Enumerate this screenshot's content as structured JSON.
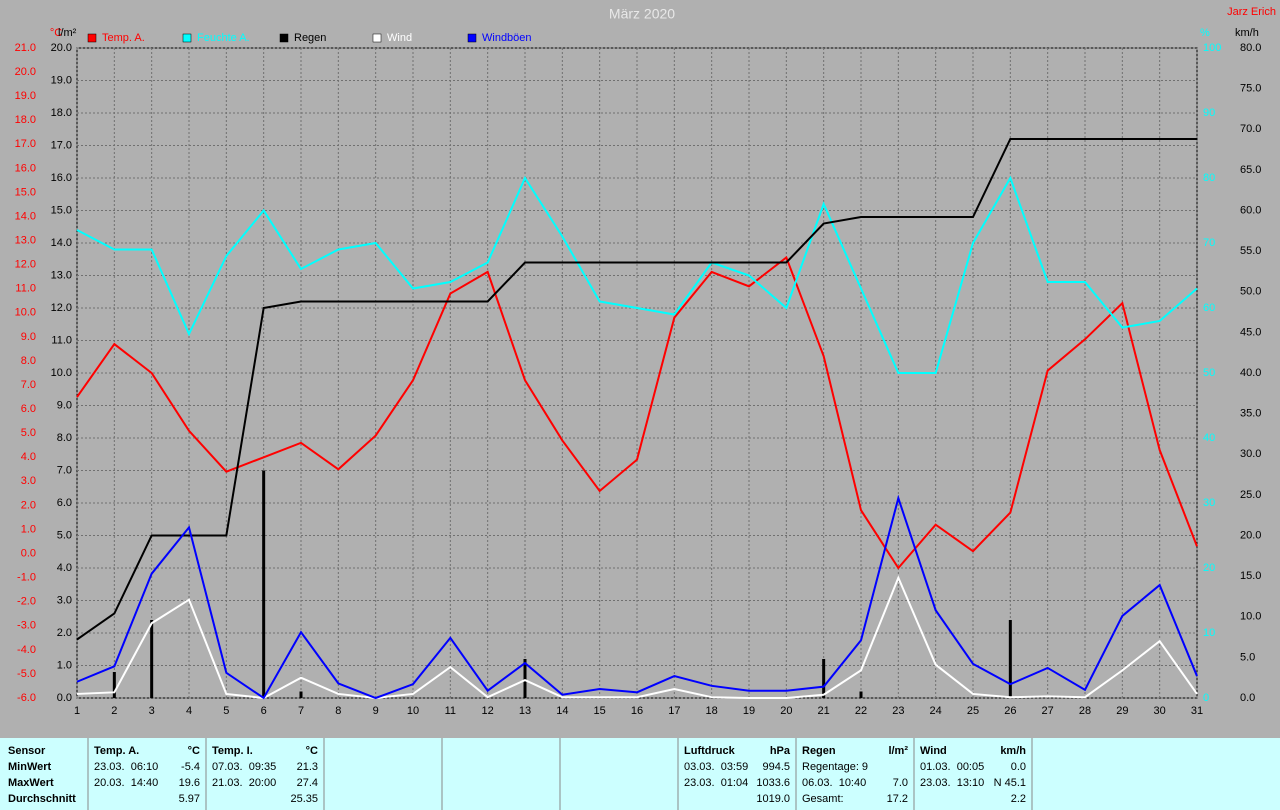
{
  "chart_data": {
    "type": "line",
    "title": "März 2020",
    "author": "Jarz Erich",
    "categories": [
      "1",
      "2",
      "3",
      "4",
      "5",
      "6",
      "7",
      "8",
      "9",
      "10",
      "11",
      "12",
      "13",
      "14",
      "15",
      "16",
      "17",
      "18",
      "19",
      "20",
      "21",
      "22",
      "23",
      "24",
      "25",
      "26",
      "27",
      "28",
      "29",
      "30",
      "31"
    ],
    "y_label": "°C",
    "y2_label": "l/m²",
    "y3_label": "%",
    "y4_label": "km/h",
    "ylim": [
      -6,
      21
    ],
    "yticks": [
      {
        "value": -6,
        "label": "-6.0"
      },
      {
        "value": -5,
        "label": "-5.0"
      },
      {
        "value": -4,
        "label": "-4.0"
      },
      {
        "value": -3,
        "label": "-3.0"
      },
      {
        "value": -2,
        "label": "-2.0"
      },
      {
        "value": -1,
        "label": "-1.0"
      },
      {
        "value": 0,
        "label": "0.0"
      },
      {
        "value": 1,
        "label": "1.0"
      },
      {
        "value": 2,
        "label": "2.0"
      },
      {
        "value": 3,
        "label": "3.0"
      },
      {
        "value": 4,
        "label": "4.0"
      },
      {
        "value": 5,
        "label": "5.0"
      },
      {
        "value": 6,
        "label": "6.0"
      },
      {
        "value": 7,
        "label": "7.0"
      },
      {
        "value": 8,
        "label": "8.0"
      },
      {
        "value": 9,
        "label": "9.0"
      },
      {
        "value": 10,
        "label": "10.0"
      },
      {
        "value": 11,
        "label": "11.0"
      },
      {
        "value": 12,
        "label": "12.0"
      },
      {
        "value": 13,
        "label": "13.0"
      },
      {
        "value": 14,
        "label": "14.0"
      },
      {
        "value": 15,
        "label": "15.0"
      },
      {
        "value": 16,
        "label": "16.0"
      },
      {
        "value": 17,
        "label": "17.0"
      },
      {
        "value": 18,
        "label": "18.0"
      },
      {
        "value": 19,
        "label": "19.0"
      },
      {
        "value": 20,
        "label": "20.0"
      },
      {
        "value": 21,
        "label": "21.0"
      }
    ],
    "y2lim": [
      0,
      20
    ],
    "y2ticks": [
      {
        "value": 0,
        "label": "0.0"
      },
      {
        "value": 1,
        "label": "1.0"
      },
      {
        "value": 2,
        "label": "2.0"
      },
      {
        "value": 3,
        "label": "3.0"
      },
      {
        "value": 4,
        "label": "4.0"
      },
      {
        "value": 5,
        "label": "5.0"
      },
      {
        "value": 6,
        "label": "6.0"
      },
      {
        "value": 7,
        "label": "7.0"
      },
      {
        "value": 8,
        "label": "8.0"
      },
      {
        "value": 9,
        "label": "9.0"
      },
      {
        "value": 10,
        "label": "10.0"
      },
      {
        "value": 11,
        "label": "11.0"
      },
      {
        "value": 12,
        "label": "12.0"
      },
      {
        "value": 13,
        "label": "13.0"
      },
      {
        "value": 14,
        "label": "14.0"
      },
      {
        "value": 15,
        "label": "15.0"
      },
      {
        "value": 16,
        "label": "16.0"
      },
      {
        "value": 17,
        "label": "17.0"
      },
      {
        "value": 18,
        "label": "18.0"
      },
      {
        "value": 19,
        "label": "19.0"
      },
      {
        "value": 20,
        "label": "20.0"
      }
    ],
    "y3lim": [
      0,
      100
    ],
    "y3ticks": [
      0,
      10,
      20,
      30,
      40,
      50,
      60,
      70,
      80,
      90,
      100
    ],
    "y4lim": [
      0,
      80
    ],
    "y4ticks": [
      {
        "value": 0,
        "label": "0.0"
      },
      {
        "value": 5,
        "label": "5.0"
      },
      {
        "value": 10,
        "label": "10.0"
      },
      {
        "value": 15,
        "label": "15.0"
      },
      {
        "value": 20,
        "label": "20.0"
      },
      {
        "value": 25,
        "label": "25.0"
      },
      {
        "value": 30,
        "label": "30.0"
      },
      {
        "value": 35,
        "label": "35.0"
      },
      {
        "value": 40,
        "label": "40.0"
      },
      {
        "value": 45,
        "label": "45.0"
      },
      {
        "value": 50,
        "label": "50.0"
      },
      {
        "value": 55,
        "label": "55.0"
      },
      {
        "value": 60,
        "label": "60.0"
      },
      {
        "value": 65,
        "label": "65.0"
      },
      {
        "value": 70,
        "label": "70.0"
      },
      {
        "value": 75,
        "label": "75.0"
      },
      {
        "value": 80,
        "label": "80.0"
      }
    ],
    "grid": true,
    "series": [
      {
        "name": "Temp. A.",
        "color": "#ff0000",
        "axis": "y",
        "values": [
          6.5,
          8.7,
          7.5,
          5.1,
          3.4,
          4.0,
          4.6,
          3.5,
          4.9,
          7.2,
          10.8,
          11.7,
          7.2,
          4.7,
          2.6,
          3.9,
          9.8,
          11.7,
          11.1,
          12.3,
          8.2,
          1.8,
          -0.6,
          1.2,
          0.1,
          1.7,
          7.6,
          8.9,
          10.4,
          4.3,
          0.3
        ]
      },
      {
        "name": "Feuchte A.",
        "color": "#00ffff",
        "axis": "y3",
        "values": [
          72,
          69,
          69,
          56,
          68,
          75,
          66,
          69,
          70,
          63,
          64,
          67,
          80,
          71,
          61,
          60,
          59,
          67,
          65,
          60,
          76,
          63,
          50,
          50,
          70,
          80,
          64,
          64,
          57,
          58,
          63
        ]
      },
      {
        "name": "Regen",
        "color": "#000000",
        "axis": "y2",
        "values": [
          1.8,
          2.6,
          5.0,
          5.0,
          5.0,
          12.0,
          12.2,
          12.2,
          12.2,
          12.2,
          12.2,
          12.2,
          13.4,
          13.4,
          13.4,
          13.4,
          13.4,
          13.4,
          13.4,
          13.4,
          14.6,
          14.8,
          14.8,
          14.8,
          14.8,
          17.2,
          17.2,
          17.2,
          17.2,
          17.2,
          17.2
        ],
        "daily": [
          0,
          0.8,
          2.4,
          0,
          0,
          7.0,
          0.2,
          0,
          0,
          0,
          0,
          0,
          1.2,
          0,
          0,
          0,
          0,
          0,
          0,
          0,
          1.2,
          0.2,
          0,
          0,
          0,
          2.4,
          0,
          0,
          0,
          0,
          0
        ]
      },
      {
        "name": "Wind",
        "color": "#ffffff",
        "axis": "y4",
        "values": [
          0.5,
          0.7,
          9.2,
          12.1,
          0.5,
          0,
          2.5,
          0.5,
          0,
          0.5,
          3.8,
          0.1,
          2.2,
          0.1,
          0.1,
          0.1,
          1.1,
          0.1,
          0,
          0,
          0.4,
          3.4,
          14.8,
          4.1,
          0.5,
          0.1,
          0.2,
          0.1,
          3.4,
          7.0,
          0.5
        ]
      },
      {
        "name": "Windböen",
        "color": "#0000ff",
        "axis": "y4",
        "values": [
          2.0,
          3.9,
          15.3,
          21.0,
          3.1,
          0,
          8.1,
          1.8,
          0,
          1.7,
          7.4,
          0.9,
          4.3,
          0.4,
          1.1,
          0.7,
          2.7,
          1.5,
          0.9,
          0.9,
          1.4,
          7.1,
          24.6,
          10.8,
          4.2,
          1.7,
          3.7,
          1.0,
          10.1,
          13.9,
          2.7
        ]
      }
    ]
  },
  "table": {
    "columns": [
      {
        "header": [
          "Sensor"
        ],
        "rows": [
          [
            "MinWert"
          ],
          [
            "MaxWert"
          ],
          [
            "Durchschnitt"
          ]
        ]
      },
      {
        "header": [
          "Temp. A.",
          "°C"
        ],
        "rows": [
          [
            "23.03.  06:10",
            "-5.4"
          ],
          [
            "20.03.  14:40",
            "19.6"
          ],
          [
            "5.97"
          ]
        ]
      },
      {
        "header": [
          "Temp. I.",
          "°C"
        ],
        "rows": [
          [
            "07.03.  09:35",
            "21.3"
          ],
          [
            "21.03.  20:00",
            "27.4"
          ],
          [
            "25.35"
          ]
        ]
      },
      {
        "header": [
          "Luftdruck",
          "hPa"
        ],
        "rows": [
          [
            "03.03.  03:59",
            "994.5"
          ],
          [
            "23.03.  01:04",
            "1033.6"
          ],
          [
            "1019.0"
          ]
        ]
      },
      {
        "header": [
          "Regen",
          "l/m²"
        ],
        "rows": [
          [
            "Regentage: 9"
          ],
          [
            "06.03.  10:40",
            "7.0"
          ],
          [
            "Gesamt:",
            "17.2"
          ]
        ]
      },
      {
        "header": [
          "Wind",
          "km/h"
        ],
        "rows": [
          [
            "01.03.  00:05",
            "0.0"
          ],
          [
            "23.03.  13:10",
            "N 45.1"
          ],
          [
            "2.2"
          ]
        ]
      }
    ]
  }
}
